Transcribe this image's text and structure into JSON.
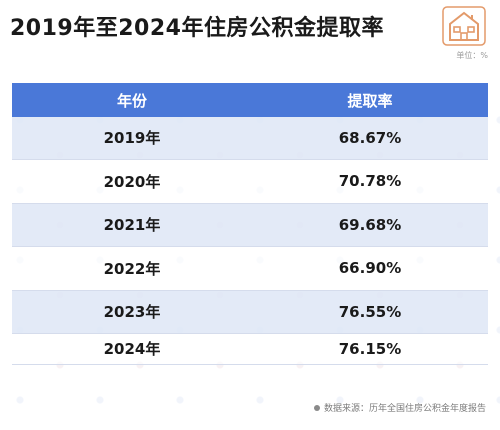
{
  "title": "2019年至2024年住房公积金提取率",
  "unit": "单位：%",
  "source": "数据来源：历年全国住房公积金年度报告",
  "colors": {
    "header": "#4a78d8",
    "odd_row": "#dee6f6",
    "logo": "#e39a6a"
  },
  "logo_icon": "house-logo-icon",
  "chart_data": {
    "type": "table",
    "title": "2019年至2024年住房公积金提取率",
    "columns": [
      "年份",
      "提取率"
    ],
    "rows": [
      [
        "2019年",
        "68.67%"
      ],
      [
        "2020年",
        "70.78%"
      ],
      [
        "2021年",
        "69.68%"
      ],
      [
        "2022年",
        "66.90%"
      ],
      [
        "2023年",
        "76.55%"
      ],
      [
        "2024年",
        "76.15%"
      ]
    ]
  }
}
